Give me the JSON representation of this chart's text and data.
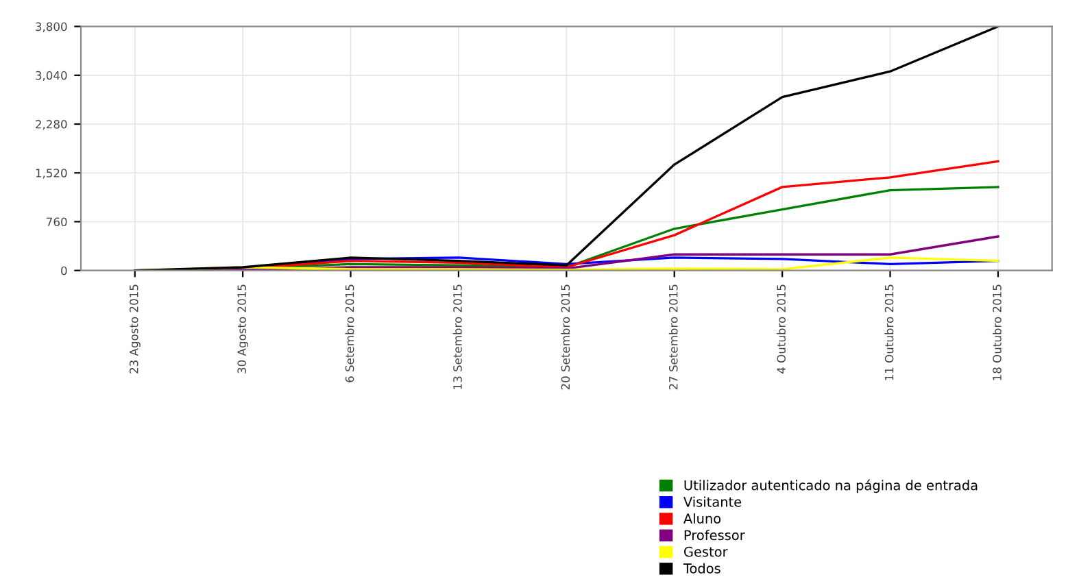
{
  "chart_data": {
    "type": "line",
    "categories": [
      "23 Agosto 2015",
      "30 Agosto 2015",
      "6 Setembro 2015",
      "13 Setembro 2015",
      "20 Setembro 2015",
      "27 Setembro 2015",
      "4 Outubro 2015",
      "11 Outubro 2015",
      "18 Outubro 2015"
    ],
    "series": [
      {
        "name": "Utilizador autenticado na página de entrada",
        "color": "#008000",
        "values": [
          0,
          30,
          100,
          80,
          50,
          650,
          950,
          1250,
          1300
        ]
      },
      {
        "name": "Visitante",
        "color": "#0000ff",
        "values": [
          0,
          20,
          180,
          200,
          100,
          200,
          180,
          100,
          150
        ]
      },
      {
        "name": "Aluno",
        "color": "#ff0000",
        "values": [
          0,
          30,
          150,
          120,
          50,
          550,
          1300,
          1450,
          1700
        ]
      },
      {
        "name": "Professor",
        "color": "#800080",
        "values": [
          0,
          10,
          50,
          50,
          30,
          250,
          250,
          250,
          530
        ]
      },
      {
        "name": "Gestor",
        "color": "#ffff00",
        "values": [
          0,
          50,
          20,
          20,
          10,
          30,
          20,
          200,
          150
        ]
      },
      {
        "name": "Todos",
        "color": "#000000",
        "values": [
          0,
          50,
          200,
          150,
          80,
          1650,
          2700,
          3100,
          3800
        ]
      }
    ],
    "ylim": [
      0,
      3800
    ],
    "yticks": [
      0,
      {
        "value": 760,
        "label": "760"
      },
      {
        "value": 1520,
        "label": "1,520"
      },
      {
        "value": 2280,
        "label": "2,280"
      },
      {
        "value": 3040,
        "label": "3,040"
      },
      {
        "value": 3800,
        "label": "3,800"
      }
    ],
    "grid": true,
    "legend": "bottom right"
  }
}
